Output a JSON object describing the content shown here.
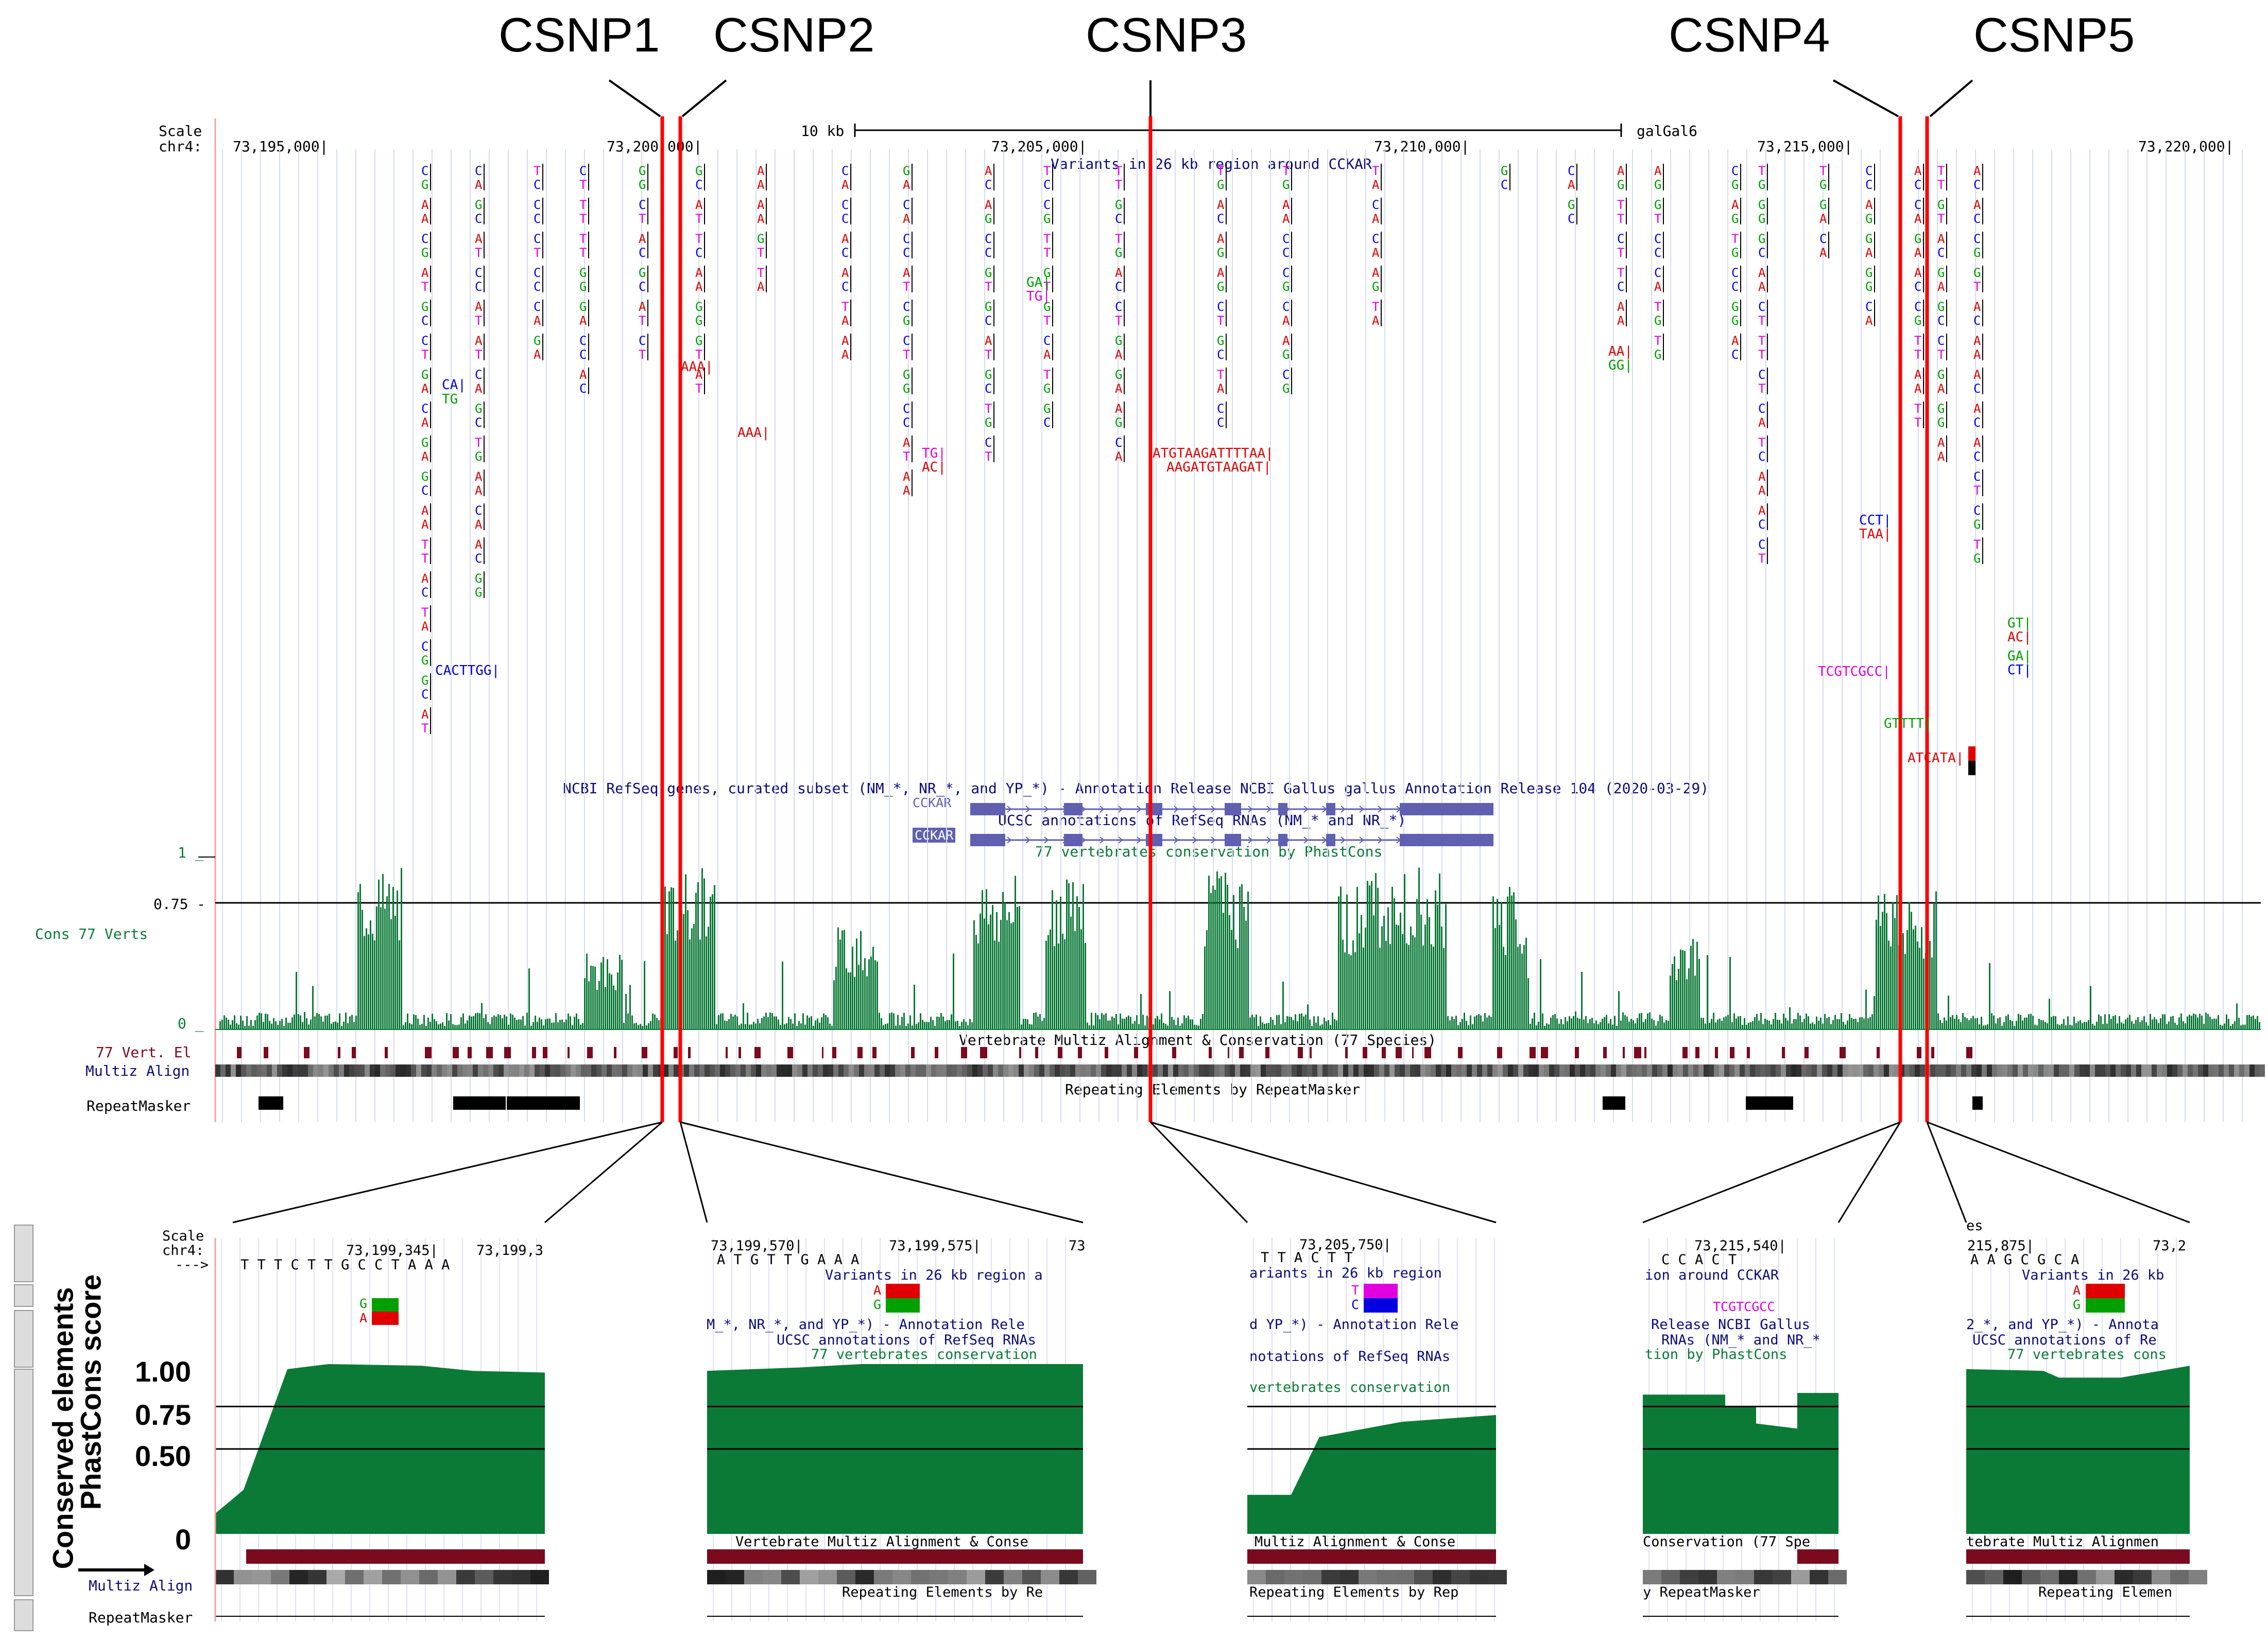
{
  "colors": {
    "A": "#e00000",
    "C": "#0000e0",
    "G": "#00a000",
    "T": "#e000e0",
    "conservation": "#0b7a37",
    "highlight": "#ff0000",
    "navy": "#0c0c78",
    "exon": "#6060b0",
    "maroon": "#7a0a1e"
  },
  "titles": [
    "CSNP1",
    "CSNP2",
    "CSNP3",
    "CSNP4",
    "CSNP5"
  ],
  "main": {
    "scale_label": "Scale",
    "chrom_label": "chr4:",
    "scale_bar": "10 kb",
    "assembly": "galGal6",
    "coords": [
      "73,195,000|",
      "73,200,000|",
      "73,205,000|",
      "73,210,000|",
      "73,215,000|",
      "73,220,000|"
    ],
    "variants_title": "Variants in 26 kb region around CCKAR",
    "refseq_title": "NCBI RefSeq genes, curated subset (NM_*, NR_*, and YP_*) - Annotation Release NCBI Gallus gallus Annotation Release 104 (2020-03-29)",
    "gene_label_1": "CCKAR",
    "ucsc_title": "UCSC annotations of RefSeq RNAs (NM_* and NR_*)",
    "gene_label_2": "CCKAR",
    "phastcons_title": "77 vertebrates conservation by PhastCons",
    "y_top": "1 _",
    "y_mid": "0.75 -",
    "y_zero": "0 _",
    "cons_label": "Cons 77 Verts",
    "multiz_title": "Vertebrate Multiz Alignment & Conservation (77 Species)",
    "el_label": "77 Vert. El",
    "multiz_label": "Multiz Align",
    "repeat_title": "Repeating Elements by RepeatMasker",
    "repeat_label": "RepeatMasker",
    "long_variants": [
      "CA|",
      "TG",
      "CACTTGG|",
      "AAA|",
      "AAA|",
      "TG|",
      "AC|",
      "GA|",
      "TG|",
      "ATGTAAGATTTTAA|",
      "AAGATGTAAGAT|",
      "AA|",
      "GG|",
      "CCT|",
      "TAA|",
      "TCGTCGCC|",
      "GTTTT|",
      "ATCATA|",
      "GT|",
      "AC|",
      "GA|",
      "CT|"
    ]
  },
  "zooms": [
    {
      "id": "csnp1",
      "scale_label": "Scale",
      "chrom_label": "chr4:",
      "strand": "--->",
      "bases": "T T T C T T G C C T A A A",
      "coords": [
        "73,199,345|",
        "73,199,3"
      ],
      "alleles": [
        "G",
        "A"
      ],
      "y_ticks": [
        "1.00",
        "0.75",
        "0.50",
        "0"
      ],
      "side_label_1": "Conserved elements",
      "side_label_2": "PhastCons score",
      "multiz": "Multiz Align",
      "repeat": "RepeatMasker"
    },
    {
      "id": "csnp2",
      "coords": [
        "73,199,570|",
        "73,199,575|",
        "73"
      ],
      "bases": "A T G T T G A A A",
      "variants": "Variants in 26 kb region a",
      "alleles": [
        "A",
        "G"
      ],
      "refseq": "M_*, NR_*, and YP_*) - Annotation Rele",
      "ucsc": "UCSC annotations of RefSeq RNAs",
      "cons": "77 vertebrates conservation",
      "multiz": "Vertebrate Multiz Alignment & Conse",
      "repeat": "Repeating Elements by Re"
    },
    {
      "id": "csnp3",
      "coords": [
        "73,205,750|"
      ],
      "bases": "T T A C T T",
      "variants": "ariants in 26 kb region",
      "alleles": [
        "T",
        "C"
      ],
      "refseq": "d YP_*) - Annotation Rele",
      "ucsc": "notations of RefSeq RNAs",
      "cons": "vertebrates conservation",
      "multiz": "Multiz Alignment & Conse",
      "repeat": "Repeating Elements by Rep"
    },
    {
      "id": "csnp4",
      "coords": [
        "73,215,540|"
      ],
      "bases": "C C A C T",
      "variants": "ion around CCKAR",
      "insertion": "TCGTCGCC",
      "refseq": "Release NCBI Gallus",
      "ucsc": "RNAs (NM_* and NR_*",
      "cons": "tion by PhastCons",
      "multiz": "Conservation (77 Spe",
      "repeat": "y RepeatMasker"
    },
    {
      "id": "csnp5",
      "coords": [
        "215,875|",
        "73,2"
      ],
      "bases": "A A G C G C A",
      "variants": "Variants in 26 kb",
      "alleles": [
        "A",
        "G"
      ],
      "prefix": "es",
      "refseq": "2_*, and YP_*) - Annota",
      "ucsc": "UCSC annotations of Re",
      "cons": "77 vertebrates cons",
      "multiz": "tebrate Multiz Alignmen",
      "repeat": "Repeating Elemen"
    }
  ]
}
